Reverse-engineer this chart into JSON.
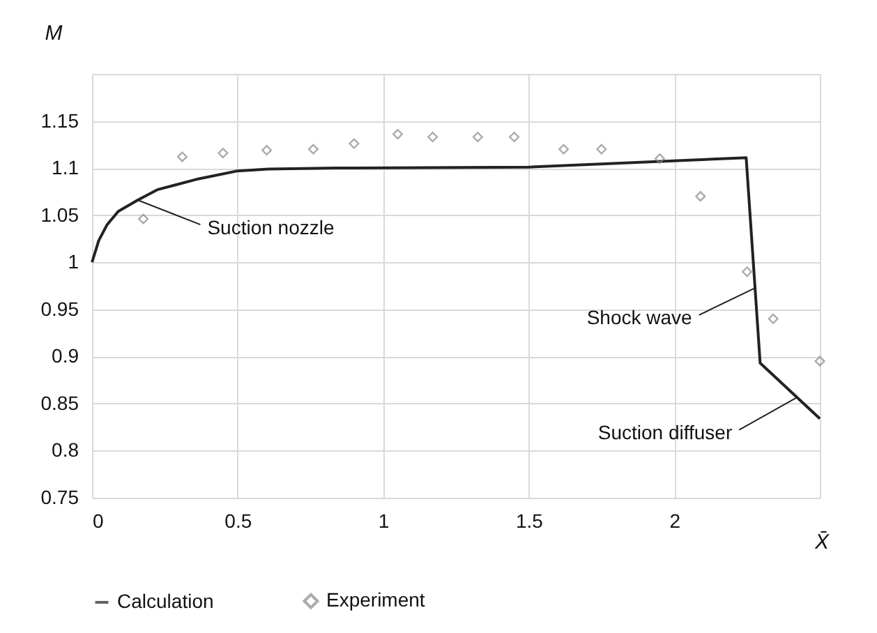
{
  "chart_data": {
    "type": "line",
    "xlabel": "X̄",
    "ylabel": "M",
    "xlim": [
      0,
      2.5
    ],
    "ylim": [
      0.75,
      1.2
    ],
    "xticks": [
      0,
      0.5,
      1,
      1.5,
      2,
      {
        "value": 2.5,
        "label": null
      }
    ],
    "yticks": [
      0.75,
      0.8,
      0.85,
      0.9,
      0.95,
      1,
      1.05,
      1.1,
      1.15,
      {
        "value": 1.2,
        "label": null
      }
    ],
    "grid": true,
    "legend": "bottom",
    "series": [
      {
        "name": "Calculation",
        "type": "line",
        "color": "#222222",
        "marker": "none",
        "line_style": "solid",
        "x": [
          0,
          0.023,
          0.052,
          0.09,
          0.157,
          0.224,
          0.358,
          0.5,
          0.606,
          0.836,
          1.497,
          2.247,
          2.295,
          2.5
        ],
        "values": [
          1,
          1.023,
          1.04,
          1.054,
          1.066,
          1.077,
          1.088,
          1.097,
          1.099,
          1.1,
          1.101,
          1.111,
          0.893,
          0.834
        ]
      },
      {
        "name": "Experiment",
        "type": "scatter",
        "color": "#888888",
        "marker": "diamond",
        "x": [
          0.176,
          0.31,
          0.45,
          0.6,
          0.76,
          0.9,
          1.05,
          1.17,
          1.325,
          1.45,
          1.62,
          1.75,
          1.95,
          2.09,
          2.25,
          2.34,
          2.5
        ],
        "values": [
          1.046,
          1.112,
          1.116,
          1.119,
          1.12,
          1.126,
          1.136,
          1.133,
          1.133,
          1.133,
          1.12,
          1.12,
          1.11,
          1.07,
          0.99,
          0.94,
          0.895
        ]
      }
    ],
    "annotations": [
      {
        "text": "Suction nozzle",
        "x": 0.157,
        "y": 1.066
      },
      {
        "text": "Shock wave",
        "x": 2.28,
        "y": 0.973
      },
      {
        "text": "Suction diffuser",
        "x": 2.418,
        "y": 0.856
      }
    ]
  }
}
